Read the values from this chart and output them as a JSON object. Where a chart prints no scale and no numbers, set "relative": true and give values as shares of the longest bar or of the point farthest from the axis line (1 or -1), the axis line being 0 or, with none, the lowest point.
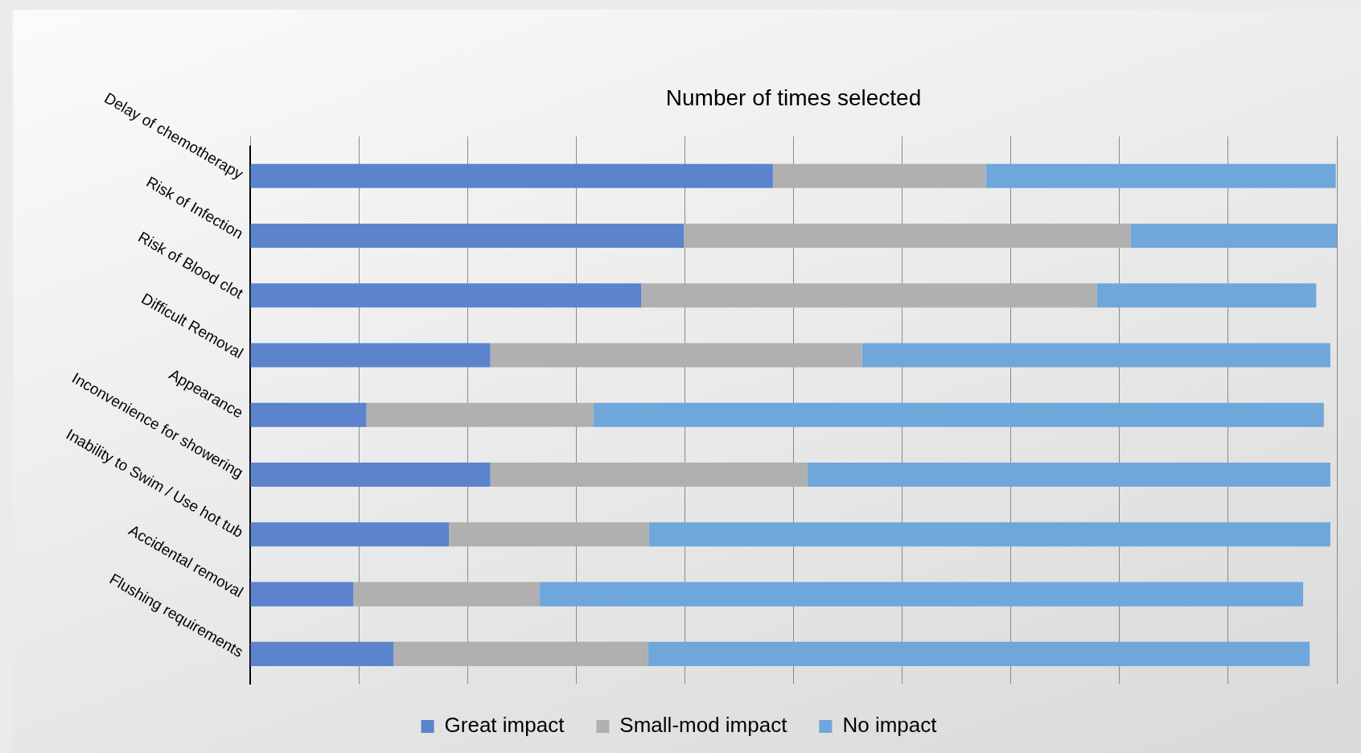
{
  "chart_data": {
    "type": "bar",
    "orientation": "horizontal",
    "stacked": true,
    "relative": true,
    "xlabel": "Number of times selected",
    "grid": "x",
    "legend": "bottom",
    "categories": [
      "Delay of chemotherapy",
      "Risk of Infection",
      "Risk of Blood clot",
      "Difficult Removal",
      "Appearance",
      "Inconvenience for showering",
      "Inability to Swim / Use hot tub",
      "Accidental removal",
      "Flushing requirements"
    ],
    "series": [
      {
        "name": "Great impact",
        "color": "#5b84cd",
        "values": [
          0.481,
          0.399,
          0.36,
          0.221,
          0.107,
          0.221,
          0.183,
          0.095,
          0.132
        ]
      },
      {
        "name": "Small-mod impact",
        "color": "#b0b0b0",
        "values": [
          0.196,
          0.411,
          0.419,
          0.342,
          0.209,
          0.292,
          0.184,
          0.171,
          0.234
        ]
      },
      {
        "name": "No impact",
        "color": "#70a7da",
        "values": [
          0.322,
          0.19,
          0.202,
          0.431,
          0.672,
          0.481,
          0.627,
          0.703,
          0.609
        ]
      }
    ]
  }
}
